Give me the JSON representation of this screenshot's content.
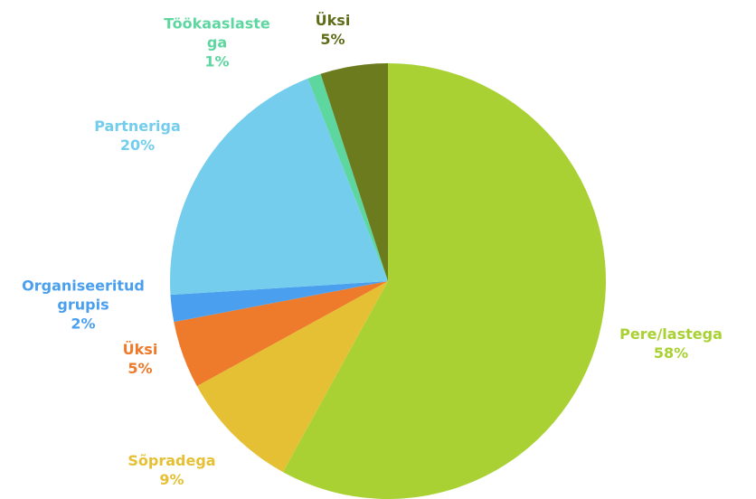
{
  "chart_data": {
    "type": "pie",
    "categories": [
      "Pere/lastega",
      "Sõpradega",
      "Üksi",
      "Organiseeritud grupis",
      "Partneriga",
      "Töökaaslastega",
      "Üksi"
    ],
    "values": [
      58,
      9,
      5,
      2,
      20,
      1,
      5
    ],
    "value_labels": [
      "58%",
      "9%",
      "5%",
      "2%",
      "20%",
      "1%",
      "5%"
    ],
    "colors": [
      "#a9d134",
      "#e6c034",
      "#ee7a2b",
      "#4aa0ee",
      "#74cdec",
      "#5ed6a0",
      "#6b7b1e"
    ]
  }
}
